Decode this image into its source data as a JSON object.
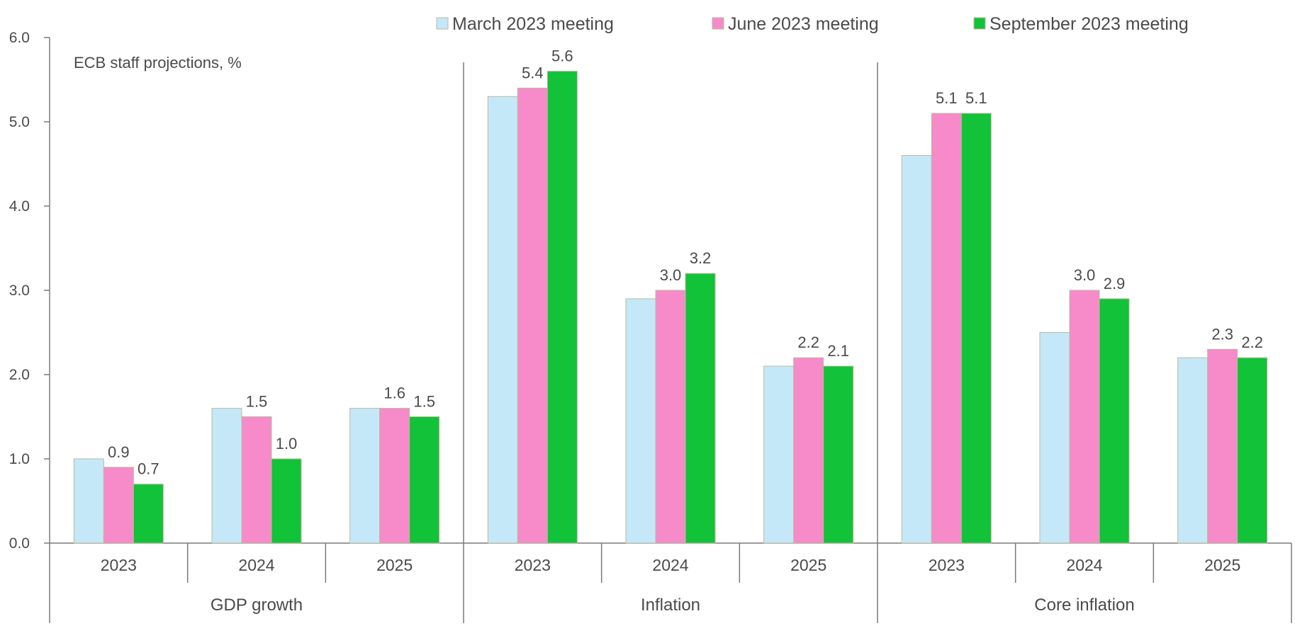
{
  "chart_data": {
    "type": "bar",
    "title": "",
    "annotation": "ECB staff projections, %",
    "ylim": [
      0,
      6
    ],
    "yticks": [
      "0.0",
      "1.0",
      "2.0",
      "3.0",
      "4.0",
      "5.0",
      "6.0"
    ],
    "grid": false,
    "legend_position": "top",
    "groups": [
      "GDP growth",
      "Inflation",
      "Core inflation"
    ],
    "categories": [
      "2023",
      "2024",
      "2025"
    ],
    "series": [
      {
        "name": "March 2023 meeting",
        "color": "#c5e8f9",
        "values": [
          [
            1.0,
            1.6,
            1.6
          ],
          [
            5.3,
            2.9,
            2.1
          ],
          [
            4.6,
            2.5,
            2.2
          ]
        ],
        "labels": [
          [
            "",
            "",
            ""
          ],
          [
            "",
            "",
            ""
          ],
          [
            "",
            "",
            ""
          ]
        ]
      },
      {
        "name": "June 2023 meeting",
        "color": "#f78ac9",
        "values": [
          [
            0.9,
            1.5,
            1.6
          ],
          [
            5.4,
            3.0,
            2.2
          ],
          [
            5.1,
            3.0,
            2.3
          ]
        ],
        "labels": [
          [
            "0.9",
            "1.5",
            "1.6"
          ],
          [
            "5.4",
            "3.0",
            "2.2"
          ],
          [
            "5.1",
            "3.0",
            "2.3"
          ]
        ]
      },
      {
        "name": "September 2023 meeting",
        "color": "#12c238",
        "values": [
          [
            0.7,
            1.0,
            1.5
          ],
          [
            5.6,
            3.2,
            2.1
          ],
          [
            5.1,
            2.9,
            2.2
          ]
        ],
        "labels": [
          [
            "0.7",
            "1.0",
            "1.5"
          ],
          [
            "5.6",
            "3.2",
            "2.1"
          ],
          [
            "5.1",
            "2.9",
            "2.2"
          ]
        ]
      }
    ]
  }
}
